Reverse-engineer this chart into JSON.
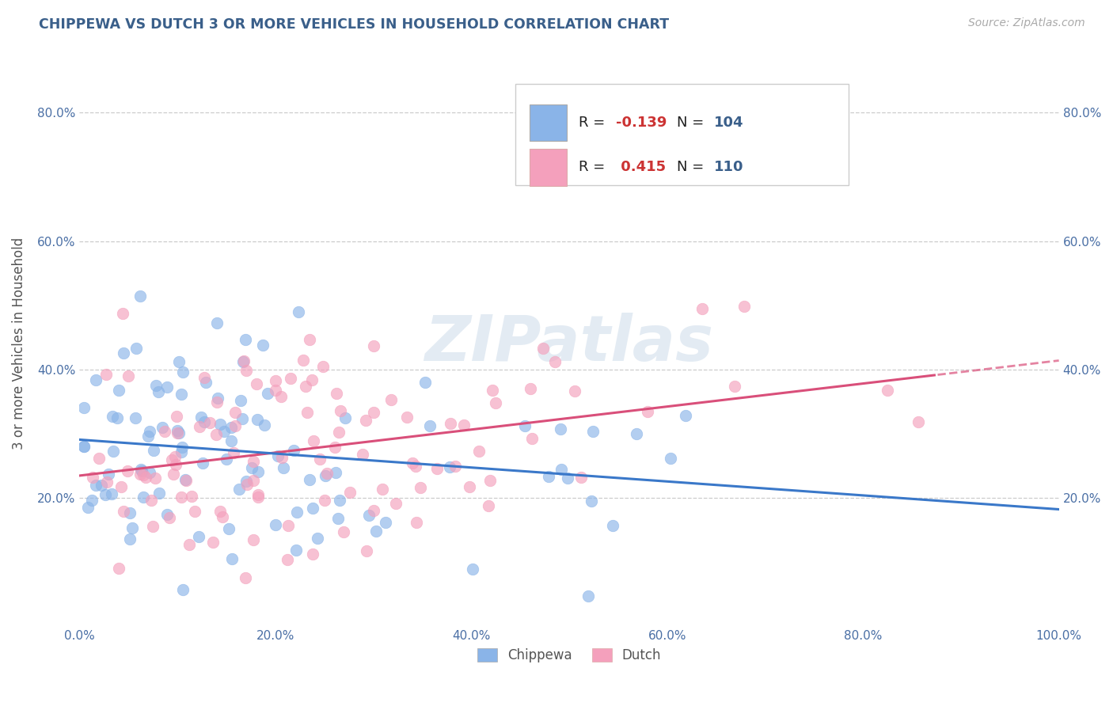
{
  "title": "CHIPPEWA VS DUTCH 3 OR MORE VEHICLES IN HOUSEHOLD CORRELATION CHART",
  "source_text": "Source: ZipAtlas.com",
  "ylabel": "3 or more Vehicles in Household",
  "xmin": 0.0,
  "xmax": 1.0,
  "ymin": 0.0,
  "ymax": 0.88,
  "chippewa_R": -0.139,
  "chippewa_N": 104,
  "dutch_R": 0.415,
  "dutch_N": 110,
  "chippewa_color": "#8ab4e8",
  "dutch_color": "#f4a0bc",
  "chippewa_line_color": "#3a78c9",
  "dutch_line_color": "#d94f7a",
  "watermark": "ZIPatlas",
  "legend_labels": [
    "Chippewa",
    "Dutch"
  ],
  "ytick_labels": [
    "20.0%",
    "40.0%",
    "60.0%",
    "80.0%"
  ],
  "ytick_values": [
    0.2,
    0.4,
    0.6,
    0.8
  ],
  "xtick_labels": [
    "0.0%",
    "20.0%",
    "40.0%",
    "60.0%",
    "80.0%",
    "100.0%"
  ],
  "xtick_values": [
    0.0,
    0.2,
    0.4,
    0.6,
    0.8,
    1.0
  ],
  "title_color": "#3a5f8a",
  "tick_color": "#4a6fa5",
  "grid_color": "#cccccc"
}
